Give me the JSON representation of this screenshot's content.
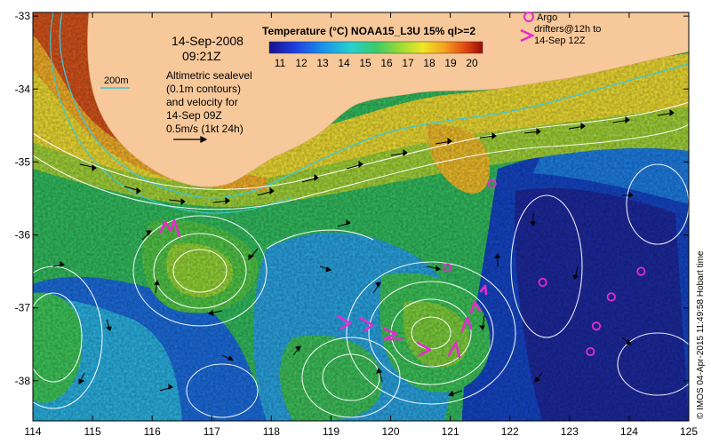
{
  "map": {
    "date": "14-Sep-2008",
    "time": "09:21Z",
    "contour_label": "200m",
    "altimetry_note": [
      "Altimetric sealevel",
      "(0.1m contours)",
      "and velocity for",
      "14-Sep 09Z",
      "0.5m/s (1kt 24h)"
    ],
    "colorbar": {
      "title": "Temperature (°C) NOAA15_L3U 15% ql>=2",
      "ticks": [
        "11",
        "12",
        "13",
        "14",
        "15",
        "16",
        "17",
        "18",
        "19",
        "20"
      ]
    },
    "argo_legend": [
      "Argo",
      "drifters@12h to",
      "14-Sep 12Z"
    ],
    "credit": "© IMOS 04-Apr-2015 11:49:58 Hobart time",
    "axes": {
      "lon_ticks": [
        "114",
        "115",
        "116",
        "117",
        "118",
        "119",
        "120",
        "121",
        "122",
        "123",
        "124",
        "125"
      ],
      "lat_ticks": [
        "-33",
        "-34",
        "-35",
        "-36",
        "-37",
        "-38"
      ],
      "lon_range": [
        114,
        125
      ],
      "lat_range": [
        -38.55,
        -32.95
      ]
    },
    "colors": {
      "land": "#f7c89a",
      "argo": "#e62bd0",
      "contour": "#ffffff",
      "isobath": "#3cc8dc"
    },
    "argo_floats": [
      {
        "lon": 121.7,
        "lat": -35.3
      },
      {
        "lon": 120.95,
        "lat": -36.45
      },
      {
        "lon": 122.55,
        "lat": -36.65
      },
      {
        "lon": 124.2,
        "lat": -36.5
      },
      {
        "lon": 123.7,
        "lat": -36.85
      },
      {
        "lon": 123.45,
        "lat": -37.25
      },
      {
        "lon": 123.35,
        "lat": -37.6
      }
    ]
  }
}
